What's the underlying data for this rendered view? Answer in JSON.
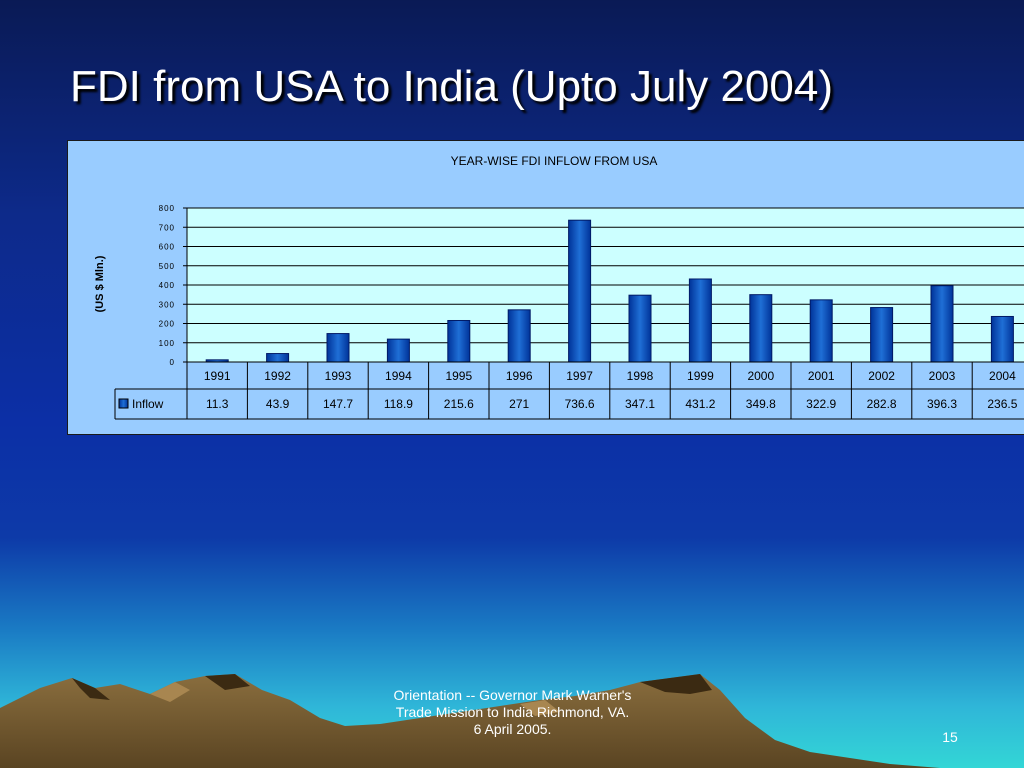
{
  "slide": {
    "title": "FDI from USA to India (Upto July 2004)",
    "footer_lines": [
      "Orientation -- Governor Mark Warner's",
      "Trade Mission to India Richmond, VA.",
      "6 April 2005."
    ],
    "page_number": "15"
  },
  "colors": {
    "chart_background": "#99ccff",
    "plot_background": "#ccffff",
    "bar_dark": "#003399",
    "bar_light": "#1f6fd6"
  },
  "chart_data": {
    "type": "bar",
    "title": "YEAR-WISE FDI INFLOW FROM USA",
    "ylabel": "(US $ Mln.)",
    "xlabel": "",
    "ylim": [
      0,
      800
    ],
    "yticks": [
      0,
      100,
      200,
      300,
      400,
      500,
      600,
      700,
      800
    ],
    "grid": true,
    "legend_placement": "data-table-left",
    "categories": [
      "1991",
      "1992",
      "1993",
      "1994",
      "1995",
      "1996",
      "1997",
      "1998",
      "1999",
      "2000",
      "2001",
      "2002",
      "2003",
      "2004"
    ],
    "series": [
      {
        "name": "Inflow",
        "values": [
          11.3,
          43.9,
          147.7,
          118.9,
          215.6,
          271,
          736.6,
          347.1,
          431.2,
          349.8,
          322.9,
          282.8,
          396.3,
          236.5
        ],
        "labels": [
          "11.3",
          "43.9",
          "147.7",
          "118.9",
          "215.6",
          "271",
          "736.6",
          "347.1",
          "431.2",
          "349.8",
          "322.9",
          "282.8",
          "396.3",
          "236.5"
        ]
      }
    ]
  }
}
